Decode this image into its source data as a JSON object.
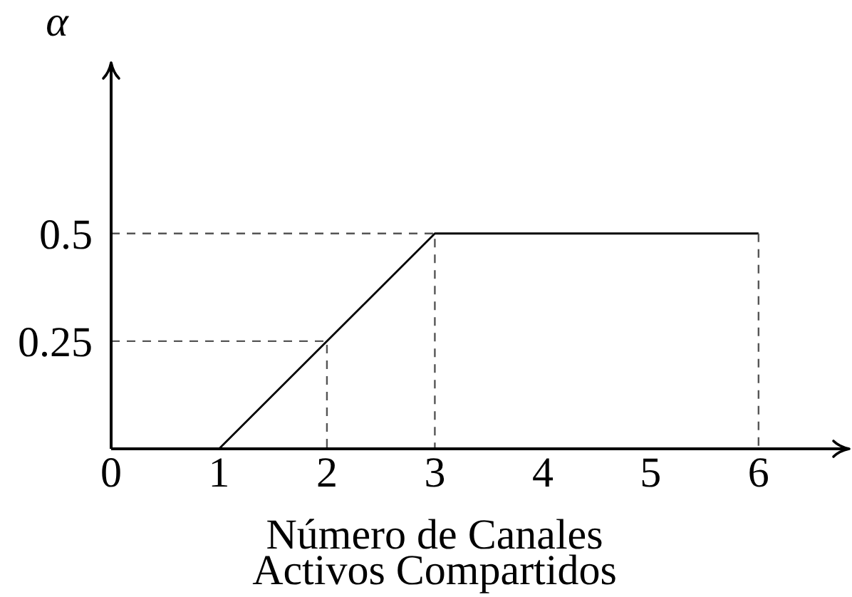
{
  "chart_data": {
    "type": "line",
    "xlabel": "Número de Canales\nActivos Compartidos",
    "ylabel": "α",
    "xlim": [
      0,
      6.8
    ],
    "xticks": [
      0,
      1,
      2,
      3,
      4,
      5,
      6
    ],
    "ylim": [
      0,
      0.89
    ],
    "yticks": [
      0.25,
      0.5
    ],
    "marker": "none",
    "series": [
      {
        "color": "#000000",
        "x": [
          1,
          3,
          6
        ],
        "values": [
          0,
          0.5,
          0.5
        ]
      },
      {
        "color": "#555555",
        "line_style": "dashed",
        "x": [
          0,
          3,
          3
        ],
        "values": [
          0.5,
          0.5,
          0
        ]
      },
      {
        "color": "#555555",
        "line_style": "dashed",
        "x": [
          0,
          2,
          2
        ],
        "values": [
          0.25,
          0.25,
          0
        ]
      },
      {
        "color": "#555555",
        "line_style": "dashed",
        "x": [
          6,
          6
        ],
        "values": [
          0.5,
          0
        ]
      }
    ]
  }
}
